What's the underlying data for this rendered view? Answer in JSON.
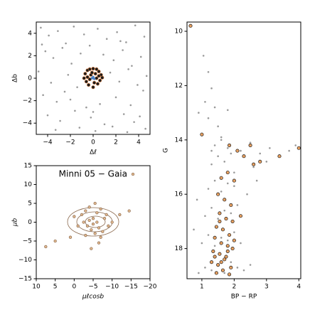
{
  "chart_data": [
    {
      "type": "scatter",
      "xlabel": "Δℓ",
      "ylabel": "Δb",
      "xlim": [
        -5,
        5
      ],
      "ylim": [
        -5,
        5
      ],
      "xticks": [
        {
          "value": -4,
          "label": "−4"
        },
        {
          "value": -2,
          "label": "−2"
        },
        0,
        2,
        4
      ],
      "yticks": [
        {
          "value": -4,
          "label": "−4"
        },
        {
          "value": -2,
          "label": "−2"
        },
        0,
        2,
        4
      ],
      "series": [
        {
          "color": "#9a9a9a",
          "edgecolor": "none",
          "size": 1.3,
          "x": [
            -4.6,
            -3.9,
            -3.1,
            -2.4,
            -1.7,
            -0.8,
            0.4,
            1.2,
            2.1,
            2.9,
            3.7,
            4.5,
            -4.2,
            -3.5,
            -2.7,
            -1.9,
            -1.1,
            -0.3,
            0.9,
            1.8,
            2.6,
            3.4,
            4.2,
            -4.8,
            -3.7,
            -2.2,
            -1.4,
            1.5,
            2.3,
            3.1,
            3.9,
            4.7,
            -4.4,
            -3.2,
            -2.5,
            -0.6,
            0.6,
            2.0,
            3.3,
            4.4,
            -4.0,
            -2.9,
            -1.6,
            -0.2,
            1.0,
            2.7,
            3.6,
            4.1,
            -3.3,
            -1.2,
            0.2,
            1.7,
            3.0,
            -4.5,
            -2.0,
            0.0,
            2.4,
            4.6
          ],
          "values": [
            4.5,
            3.8,
            4.2,
            3.1,
            4.6,
            3.9,
            4.4,
            3.5,
            4.1,
            3.2,
            4.7,
            3.7,
            2.4,
            1.8,
            2.7,
            1.3,
            2.2,
            2.9,
            2.1,
            1.6,
            2.5,
            1.1,
            1.9,
            0.6,
            -0.4,
            0.3,
            -0.8,
            0.5,
            -0.3,
            0.8,
            -0.6,
            0.2,
            -1.5,
            -2.1,
            -1.2,
            -2.6,
            -2.3,
            -1.7,
            -2.4,
            -1.1,
            -3.3,
            -3.8,
            -2.9,
            -3.5,
            -4.1,
            -3.2,
            -3.9,
            -3.4,
            -4.6,
            -4.4,
            -4.7,
            -4.3,
            -4.8,
            3.0,
            -1.9,
            -3.0,
            3.3,
            -4.5
          ]
        },
        {
          "color": "#1a1a1a",
          "edgecolor": "#c8733a",
          "size": 2.2,
          "x": [
            -0.7,
            -0.5,
            -0.3,
            0.0,
            0.3,
            0.5,
            0.7,
            -0.6,
            -0.2,
            0.2,
            0.6,
            -0.8,
            -0.4,
            0.4,
            0.8,
            -0.5,
            0.0,
            0.5,
            -0.3,
            0.3,
            -0.1,
            0.1
          ],
          "values": [
            0.4,
            0.7,
            0.8,
            0.85,
            0.8,
            0.6,
            0.3,
            -0.3,
            0.3,
            0.4,
            -0.2,
            0.0,
            -0.6,
            -0.5,
            0.05,
            0.1,
            -0.8,
            0.2,
            -0.1,
            0.0,
            0.5,
            -0.4
          ]
        },
        {
          "color": "#4a7fc1",
          "edgecolor": "none",
          "size": 1.8,
          "x": [
            0.0,
            0.1,
            -0.1
          ],
          "values": [
            0.1,
            -0.05,
            0.0
          ]
        }
      ]
    },
    {
      "type": "scatter",
      "xlabel": "μℓcosb",
      "ylabel": "μb",
      "legend": "upper center",
      "xlim": [
        10,
        -20
      ],
      "ylim": [
        -15,
        15
      ],
      "xticks": [
        10,
        5,
        0,
        {
          "value": -5,
          "label": "−5"
        },
        {
          "value": -10,
          "label": "−10"
        },
        {
          "value": -15,
          "label": "−15"
        },
        {
          "value": -20,
          "label": "−20"
        }
      ],
      "yticks": [
        {
          "value": -15,
          "label": "−15"
        },
        {
          "value": -10,
          "label": "−10"
        },
        {
          "value": -5,
          "label": "−5"
        },
        0,
        5,
        10,
        15
      ],
      "series": [
        {
          "name": "Minni 05 − Gaia",
          "color": "#e2b98f",
          "edgecolor": "#8b6a4f",
          "size": 1.8,
          "x": [
            -2,
            -3,
            -4,
            -5,
            -6,
            -7,
            -8,
            -9,
            -3.5,
            -4.5,
            -5.5,
            -6.5,
            -7.5,
            -2.5,
            -8.5,
            -4,
            -6,
            -5,
            -3,
            -7,
            -1,
            0,
            1,
            -10,
            -12,
            -14.5,
            -5.5,
            -4.5,
            -6.5,
            5,
            7.5
          ],
          "values": [
            2,
            3,
            4,
            1,
            2.5,
            3.5,
            1,
            -1,
            -1,
            -2,
            -3,
            -1.5,
            -2.5,
            0,
            2,
            0.5,
            0,
            -0.5,
            -3.5,
            -4,
            -1,
            1.5,
            -4,
            0,
            2,
            3,
            5,
            -7,
            -5.5,
            -5,
            -6.5
          ]
        }
      ]
    },
    {
      "type": "scatter",
      "xlabel": "BP − RP",
      "ylabel": "G",
      "xlim": [
        0.54,
        4.06
      ],
      "ylim": [
        19.11,
        9.66
      ],
      "xticks": [
        1,
        2,
        3,
        4
      ],
      "yticks": [
        10,
        12,
        14,
        16,
        18
      ],
      "series": [
        {
          "color": "#9a9a9a",
          "edgecolor": "none",
          "size": 1.3,
          "x": [
            0.9,
            1.1,
            1.3,
            1.5,
            1.7,
            1.9,
            2.1,
            2.3,
            2.5,
            1.0,
            1.2,
            1.4,
            1.6,
            1.8,
            2.0,
            2.2,
            1.1,
            1.3,
            1.5,
            1.7,
            1.9,
            2.1,
            1.2,
            1.4,
            1.6,
            1.8,
            2.0,
            1.3,
            1.5,
            1.7,
            1.9,
            1.4,
            1.6,
            1.8,
            2.2,
            2.5,
            2.8,
            3.1,
            3.4,
            3.7,
            3.9,
            2.6,
            3.0,
            1.0,
            1.2,
            1.5,
            1.1,
            1.3,
            0.9,
            1.2,
            1.4,
            1.05,
            1.3,
            0.85,
            0.75,
            1.6,
            2.0,
            2.4,
            1.8,
            2.7
          ],
          "values": [
            18.9,
            18.7,
            18.8,
            18.6,
            18.9,
            18.5,
            18.7,
            18.8,
            18.6,
            17.8,
            17.5,
            17.9,
            17.6,
            17.7,
            17.4,
            17.8,
            16.8,
            16.5,
            16.9,
            16.6,
            16.7,
            16.4,
            15.8,
            15.5,
            15.9,
            15.6,
            15.7,
            14.9,
            14.6,
            14.8,
            14.5,
            14.2,
            14.0,
            14.3,
            14.4,
            14.1,
            14.5,
            14.3,
            14.6,
            14.4,
            14.2,
            15.0,
            14.8,
            13.8,
            13.2,
            13.5,
            12.6,
            12.1,
            13.0,
            11.5,
            12.8,
            10.9,
            14.4,
            16.2,
            17.3,
            13.9,
            15.2,
            16.0,
            12.9,
            15.5
          ]
        },
        {
          "color": "#e8a060",
          "edgecolor": "#1a1a1a",
          "size": 2.2,
          "x": [
            0.65,
            1.0,
            1.85,
            2.1,
            2.3,
            2.5,
            2.6,
            2.8,
            3.4,
            4.0,
            1.6,
            1.8,
            2.0,
            1.5,
            1.7,
            1.9,
            1.55,
            1.75,
            1.95,
            1.45,
            1.65,
            1.85,
            1.4,
            1.6,
            1.8,
            2.0,
            1.35,
            1.55,
            1.75,
            1.95,
            1.3,
            1.5,
            1.7,
            1.9,
            1.45,
            1.65,
            1.85,
            1.4,
            1.6,
            1.8,
            2.2,
            1.55
          ],
          "values": [
            9.8,
            13.8,
            14.2,
            14.4,
            14.6,
            14.2,
            14.9,
            14.8,
            14.6,
            14.3,
            15.4,
            15.2,
            15.5,
            16.0,
            16.2,
            16.4,
            16.7,
            16.9,
            17.0,
            17.2,
            17.3,
            17.5,
            17.6,
            17.8,
            17.9,
            17.7,
            18.1,
            18.2,
            18.3,
            18.0,
            18.5,
            18.6,
            18.4,
            18.7,
            18.9,
            18.8,
            18.95,
            18.3,
            18.5,
            18.1,
            16.8,
            17.0
          ]
        }
      ]
    }
  ]
}
